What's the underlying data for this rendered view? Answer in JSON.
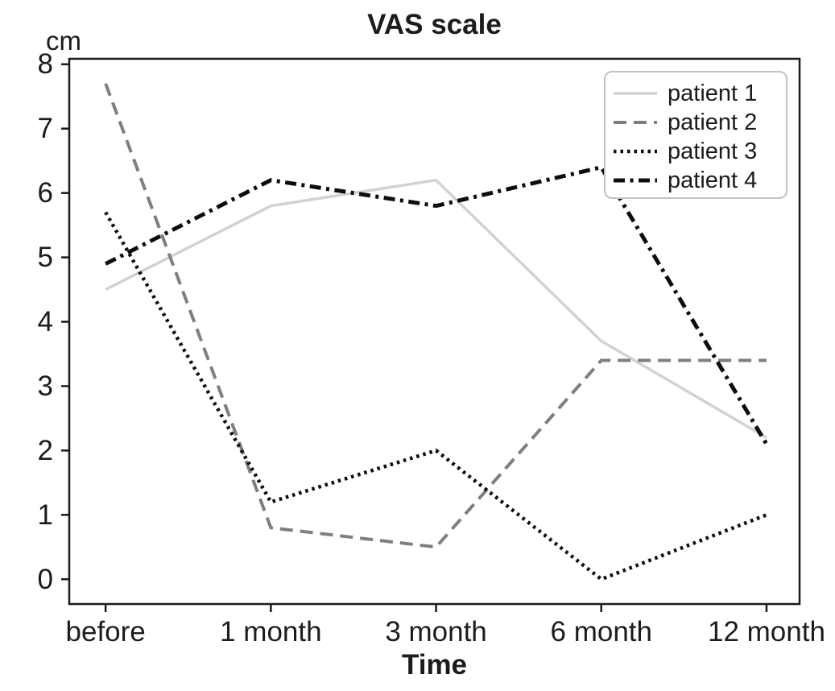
{
  "figure": {
    "background": "#ffffff",
    "text_color": "#1c1c1c",
    "spine_color": "#1a1a1a"
  },
  "chart_data": {
    "type": "line",
    "title": "VAS scale",
    "ylabel": "cm",
    "xlabel": "Time",
    "categories": [
      "before",
      "1 month",
      "3 month",
      "6 month",
      "12 month"
    ],
    "y_ticks": [
      0,
      1,
      2,
      3,
      4,
      5,
      6,
      7,
      8
    ],
    "ylim": [
      -0.385,
      8.085
    ],
    "xlim": [
      -0.22,
      4.2
    ],
    "grid": false,
    "legend_position": "upper right",
    "series": [
      {
        "name": "patient 1",
        "values": [
          4.5,
          5.8,
          6.2,
          3.7,
          2.2
        ],
        "color": "#d2d2d2",
        "style": "solid",
        "width": 3.5
      },
      {
        "name": "patient 2",
        "values": [
          7.7,
          0.8,
          0.5,
          3.4,
          3.4
        ],
        "color": "#7f7f7f",
        "style": "dashed",
        "width": 4
      },
      {
        "name": "patient 3",
        "values": [
          5.7,
          1.2,
          2.0,
          0.0,
          1.0
        ],
        "color": "#0d0d0d",
        "style": "dotted",
        "width": 4.5
      },
      {
        "name": "patient 4",
        "values": [
          4.9,
          6.2,
          5.8,
          6.4,
          2.1
        ],
        "color": "#0d0d0d",
        "style": "dashdot",
        "width": 5
      }
    ]
  }
}
